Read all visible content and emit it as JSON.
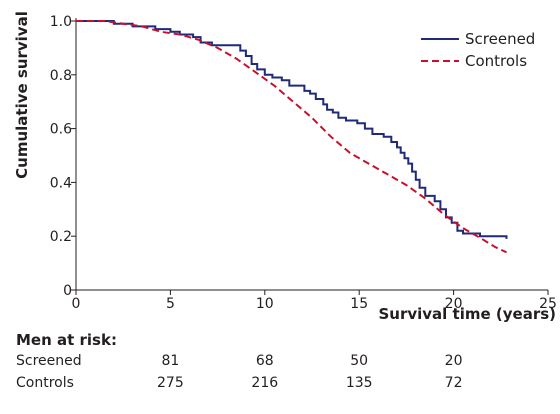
{
  "chart_data": {
    "type": "line",
    "ylabel": "Cumulative survival",
    "xlabel": "Survival time (years)",
    "xlim": [
      0,
      25
    ],
    "ylim": [
      0,
      1.0
    ],
    "xticks": [
      "0",
      "5",
      "10",
      "15",
      "20",
      "25"
    ],
    "yticks": [
      "0",
      "0.2",
      "0.4",
      "0.6",
      "0.8",
      "1.0"
    ],
    "grid": false,
    "legend_position": "top-right",
    "series": [
      {
        "name": "Screened",
        "color": "#1f2a78",
        "style": "solid",
        "points": [
          [
            0,
            1.0
          ],
          [
            2.0,
            1.0
          ],
          [
            2.0,
            0.99
          ],
          [
            3.0,
            0.99
          ],
          [
            3.0,
            0.98
          ],
          [
            4.2,
            0.98
          ],
          [
            4.2,
            0.97
          ],
          [
            5.0,
            0.97
          ],
          [
            5.0,
            0.96
          ],
          [
            5.5,
            0.96
          ],
          [
            5.5,
            0.95
          ],
          [
            6.2,
            0.95
          ],
          [
            6.2,
            0.94
          ],
          [
            6.6,
            0.94
          ],
          [
            6.6,
            0.92
          ],
          [
            7.2,
            0.92
          ],
          [
            7.2,
            0.91
          ],
          [
            8.7,
            0.91
          ],
          [
            8.7,
            0.89
          ],
          [
            9.0,
            0.89
          ],
          [
            9.0,
            0.87
          ],
          [
            9.3,
            0.87
          ],
          [
            9.3,
            0.84
          ],
          [
            9.6,
            0.84
          ],
          [
            9.6,
            0.82
          ],
          [
            10.0,
            0.82
          ],
          [
            10.0,
            0.8
          ],
          [
            10.4,
            0.8
          ],
          [
            10.4,
            0.79
          ],
          [
            10.9,
            0.79
          ],
          [
            10.9,
            0.78
          ],
          [
            11.3,
            0.78
          ],
          [
            11.3,
            0.76
          ],
          [
            12.1,
            0.76
          ],
          [
            12.1,
            0.74
          ],
          [
            12.4,
            0.74
          ],
          [
            12.4,
            0.73
          ],
          [
            12.7,
            0.73
          ],
          [
            12.7,
            0.71
          ],
          [
            13.1,
            0.71
          ],
          [
            13.1,
            0.69
          ],
          [
            13.3,
            0.69
          ],
          [
            13.3,
            0.67
          ],
          [
            13.6,
            0.67
          ],
          [
            13.6,
            0.66
          ],
          [
            13.9,
            0.66
          ],
          [
            13.9,
            0.64
          ],
          [
            14.3,
            0.64
          ],
          [
            14.3,
            0.63
          ],
          [
            14.9,
            0.63
          ],
          [
            14.9,
            0.62
          ],
          [
            15.3,
            0.62
          ],
          [
            15.3,
            0.6
          ],
          [
            15.7,
            0.6
          ],
          [
            15.7,
            0.58
          ],
          [
            16.3,
            0.58
          ],
          [
            16.3,
            0.57
          ],
          [
            16.7,
            0.57
          ],
          [
            16.7,
            0.55
          ],
          [
            17.0,
            0.55
          ],
          [
            17.0,
            0.53
          ],
          [
            17.2,
            0.53
          ],
          [
            17.2,
            0.51
          ],
          [
            17.4,
            0.51
          ],
          [
            17.4,
            0.49
          ],
          [
            17.6,
            0.49
          ],
          [
            17.6,
            0.47
          ],
          [
            17.8,
            0.47
          ],
          [
            17.8,
            0.44
          ],
          [
            18.0,
            0.44
          ],
          [
            18.0,
            0.41
          ],
          [
            18.2,
            0.41
          ],
          [
            18.2,
            0.38
          ],
          [
            18.5,
            0.38
          ],
          [
            18.5,
            0.35
          ],
          [
            19.0,
            0.35
          ],
          [
            19.0,
            0.33
          ],
          [
            19.3,
            0.33
          ],
          [
            19.3,
            0.3
          ],
          [
            19.6,
            0.3
          ],
          [
            19.6,
            0.27
          ],
          [
            19.9,
            0.27
          ],
          [
            19.9,
            0.25
          ],
          [
            20.2,
            0.25
          ],
          [
            20.2,
            0.22
          ],
          [
            20.5,
            0.22
          ],
          [
            20.5,
            0.21
          ],
          [
            21.4,
            0.21
          ],
          [
            21.4,
            0.2
          ],
          [
            22.8,
            0.2
          ],
          [
            22.8,
            0.19
          ]
        ]
      },
      {
        "name": "Controls",
        "color": "#c8102e",
        "style": "dashed",
        "points": [
          [
            0,
            1.0
          ],
          [
            1.5,
            1.0
          ],
          [
            2.5,
            0.99
          ],
          [
            3.5,
            0.98
          ],
          [
            4.5,
            0.96
          ],
          [
            5.5,
            0.95
          ],
          [
            6.5,
            0.93
          ],
          [
            7.5,
            0.9
          ],
          [
            8.5,
            0.86
          ],
          [
            9.5,
            0.81
          ],
          [
            10.5,
            0.76
          ],
          [
            11.5,
            0.7
          ],
          [
            12.5,
            0.64
          ],
          [
            13.5,
            0.57
          ],
          [
            14.5,
            0.51
          ],
          [
            15.5,
            0.47
          ],
          [
            16.5,
            0.43
          ],
          [
            17.5,
            0.39
          ],
          [
            18.5,
            0.34
          ],
          [
            19.5,
            0.28
          ],
          [
            20.5,
            0.23
          ],
          [
            21.5,
            0.19
          ],
          [
            22.2,
            0.16
          ],
          [
            22.8,
            0.14
          ]
        ]
      }
    ]
  },
  "risk_table": {
    "title": "Men at risk:",
    "time_points": [
      5,
      10,
      15,
      20
    ],
    "rows": [
      {
        "label": "Screened",
        "values": [
          "81",
          "68",
          "50",
          "20"
        ]
      },
      {
        "label": "Controls",
        "values": [
          "275",
          "216",
          "135",
          "72"
        ]
      }
    ]
  }
}
